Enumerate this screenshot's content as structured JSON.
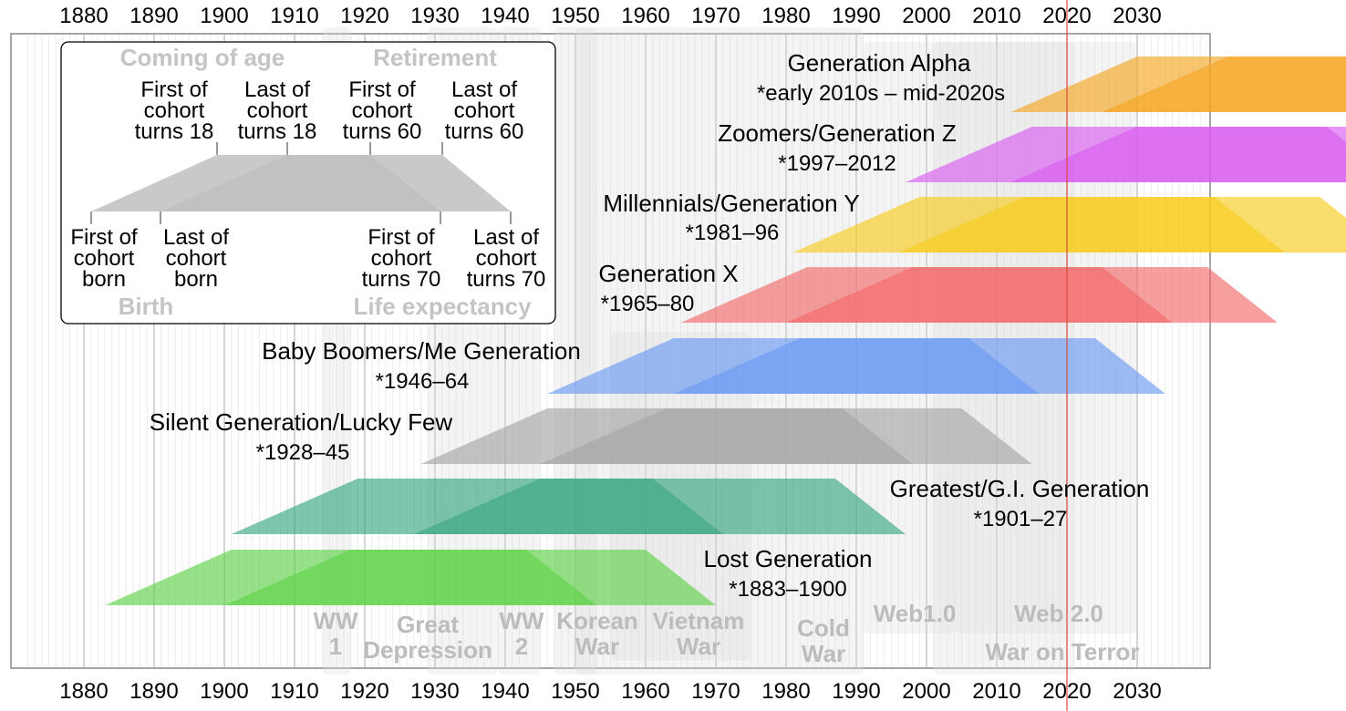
{
  "axis": {
    "ticks": [
      "1880",
      "1890",
      "1900",
      "1910",
      "1920",
      "1930",
      "1940",
      "1950",
      "1960",
      "1970",
      "1980",
      "1990",
      "2000",
      "2010",
      "2020",
      "2030"
    ]
  },
  "current_year_marker": {
    "year": 2020,
    "color": "#d94b3c"
  },
  "events": [
    {
      "label": "WW 1",
      "lines": [
        "WW",
        "1"
      ],
      "start": 1914,
      "end": 1918
    },
    {
      "label": "Great Depression",
      "lines": [
        "Great",
        "Depression"
      ],
      "start": 1929,
      "end": 1939
    },
    {
      "label": "WW 2",
      "lines": [
        "WW",
        "2"
      ],
      "start": 1939,
      "end": 1945
    },
    {
      "label": "Korean War",
      "lines": [
        "Korean",
        "War"
      ],
      "start": 1950,
      "end": 1953
    },
    {
      "label": "Vietnam War",
      "lines": [
        "Vietnam",
        "War"
      ],
      "start": 1955,
      "end": 1975
    },
    {
      "label": "Cold War",
      "lines": [
        "Cold",
        "War"
      ],
      "start": 1947,
      "end": 1991
    },
    {
      "label": "Web1.0",
      "lines": [
        "Web1.0"
      ],
      "start": 1991,
      "end": 2004
    },
    {
      "label": "Web 2.0",
      "lines": [
        "Web 2.0"
      ],
      "start": 2004,
      "end": 2030
    },
    {
      "label": "War on Terror",
      "lines": [
        "War on Terror"
      ],
      "start": 2001,
      "end": 2021
    }
  ],
  "generations": [
    {
      "name": "Generation Alpha",
      "years": "early 2010s – mid-2020s",
      "born_from": 2012,
      "born_to": 2025,
      "color": "#f5a623"
    },
    {
      "name": "Zoomers/Generation Z",
      "years": "1997–2012",
      "born_from": 1997,
      "born_to": 2012,
      "color": "#d95ef0"
    },
    {
      "name": "Millennials/Generation Y",
      "years": "1981–96",
      "born_from": 1981,
      "born_to": 1996,
      "color": "#f7cc1e"
    },
    {
      "name": "Generation X",
      "years": "1965–80",
      "born_from": 1965,
      "born_to": 1980,
      "color": "#f26a6a"
    },
    {
      "name": "Baby Boomers/Me Generation",
      "years": "1946–64",
      "born_from": 1946,
      "born_to": 1964,
      "color": "#6b9bf2"
    },
    {
      "name": "Silent Generation/Lucky Few",
      "years": "1928–45",
      "born_from": 1928,
      "born_to": 1945,
      "color": "#a6a6a6"
    },
    {
      "name": "Greatest/G.I. Generation",
      "years": "1901–27",
      "born_from": 1901,
      "born_to": 1927,
      "color": "#3aa882"
    },
    {
      "name": "Lost Generation",
      "years": "1883–1900",
      "born_from": 1883,
      "born_to": 1900,
      "color": "#5fd34a"
    }
  ],
  "birth_marker": "*",
  "legend": {
    "coming_of_age": "Coming of age",
    "retirement": "Retirement",
    "birth": "Birth",
    "life_expectancy": "Life expectancy",
    "top_labels": [
      [
        "First of",
        "cohort",
        "turns 18"
      ],
      [
        "Last of",
        "cohort",
        "turns 18"
      ],
      [
        "First of",
        "cohort",
        "turns 60"
      ],
      [
        "Last of",
        "cohort",
        "turns 60"
      ]
    ],
    "bottom_labels": [
      [
        "First of",
        "cohort",
        "born"
      ],
      [
        "Last of",
        "cohort",
        "born"
      ],
      [
        "First of",
        "cohort",
        "turns 70"
      ],
      [
        "Last of",
        "cohort",
        "turns 70"
      ]
    ]
  }
}
